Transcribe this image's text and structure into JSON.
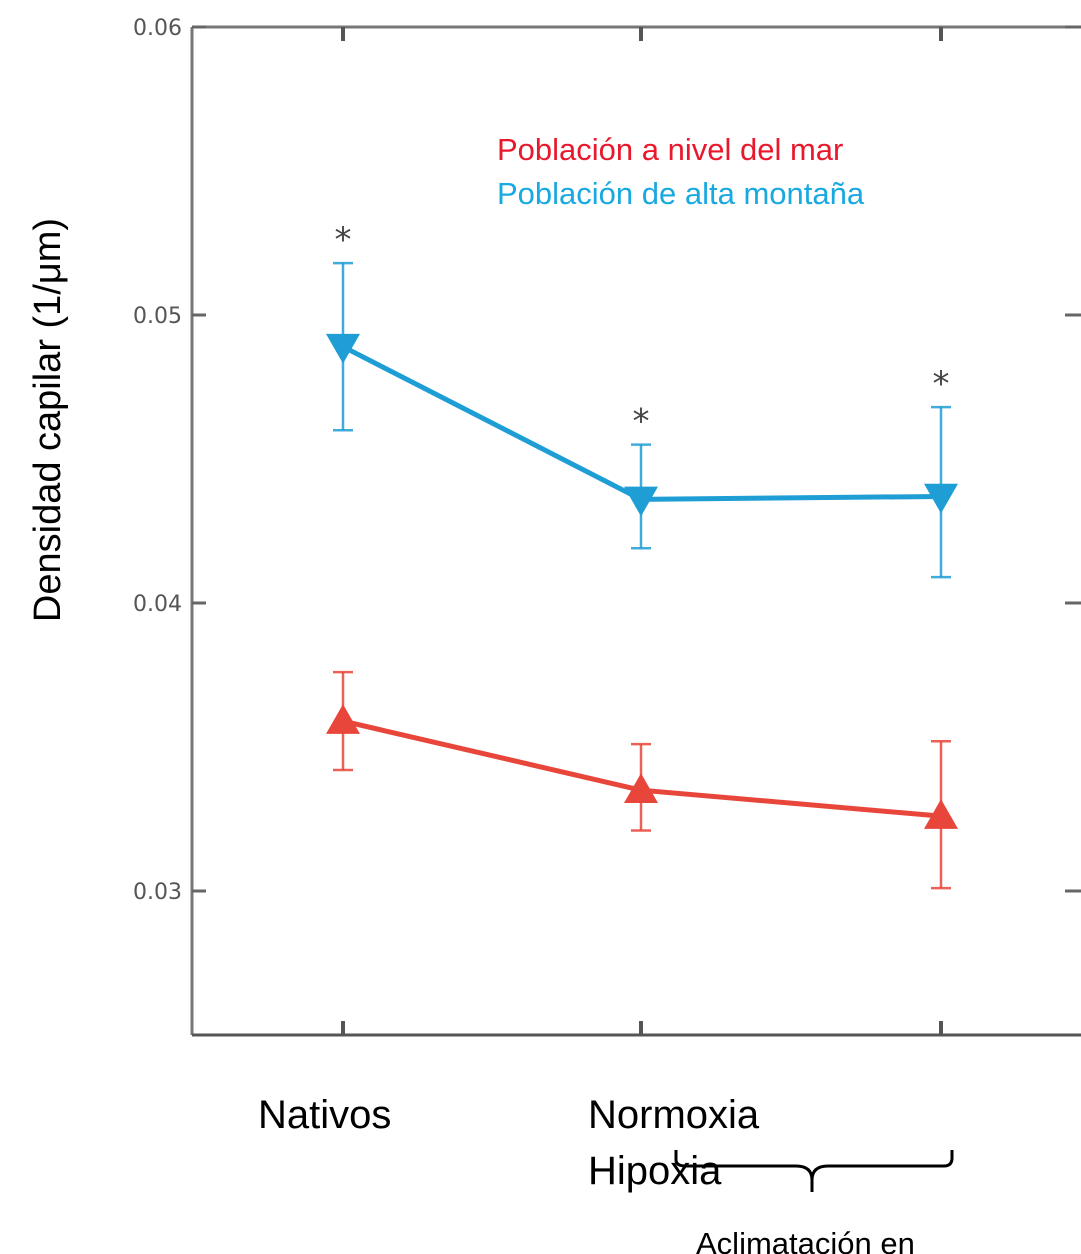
{
  "chart_data": {
    "type": "line",
    "ylabel": "Densidad capilar (1/μm)",
    "ylim": [
      0.025,
      0.06
    ],
    "yticks": [
      0.03,
      0.04,
      0.05,
      0.06
    ],
    "ytick_labels": [
      "0.03",
      "0.04",
      "0.05",
      "0.06"
    ],
    "categories": [
      "Nativos",
      "Normoxia",
      "Hipoxia"
    ],
    "grid": false,
    "legend_position": "top-right",
    "series": [
      {
        "name": "Población a nivel del mar",
        "color": "#e8463a",
        "marker": "triangle-up",
        "values": [
          0.0359,
          0.0335,
          0.0326
        ],
        "err_low": [
          0.0342,
          0.0321,
          0.0301
        ],
        "err_high": [
          0.0376,
          0.0351,
          0.0352
        ]
      },
      {
        "name": "Población de alta montaña",
        "color": "#1f9ed6",
        "marker": "triangle-down",
        "values": [
          0.0489,
          0.0436,
          0.0437
        ],
        "err_low": [
          0.046,
          0.0419,
          0.0409
        ],
        "err_high": [
          0.0518,
          0.0455,
          0.0468
        ],
        "significance": [
          "*",
          "*",
          "*"
        ]
      }
    ],
    "legend_colors": [
      "#e8192c",
      "#19a9e1"
    ],
    "annotation": "Aclimatación en"
  }
}
